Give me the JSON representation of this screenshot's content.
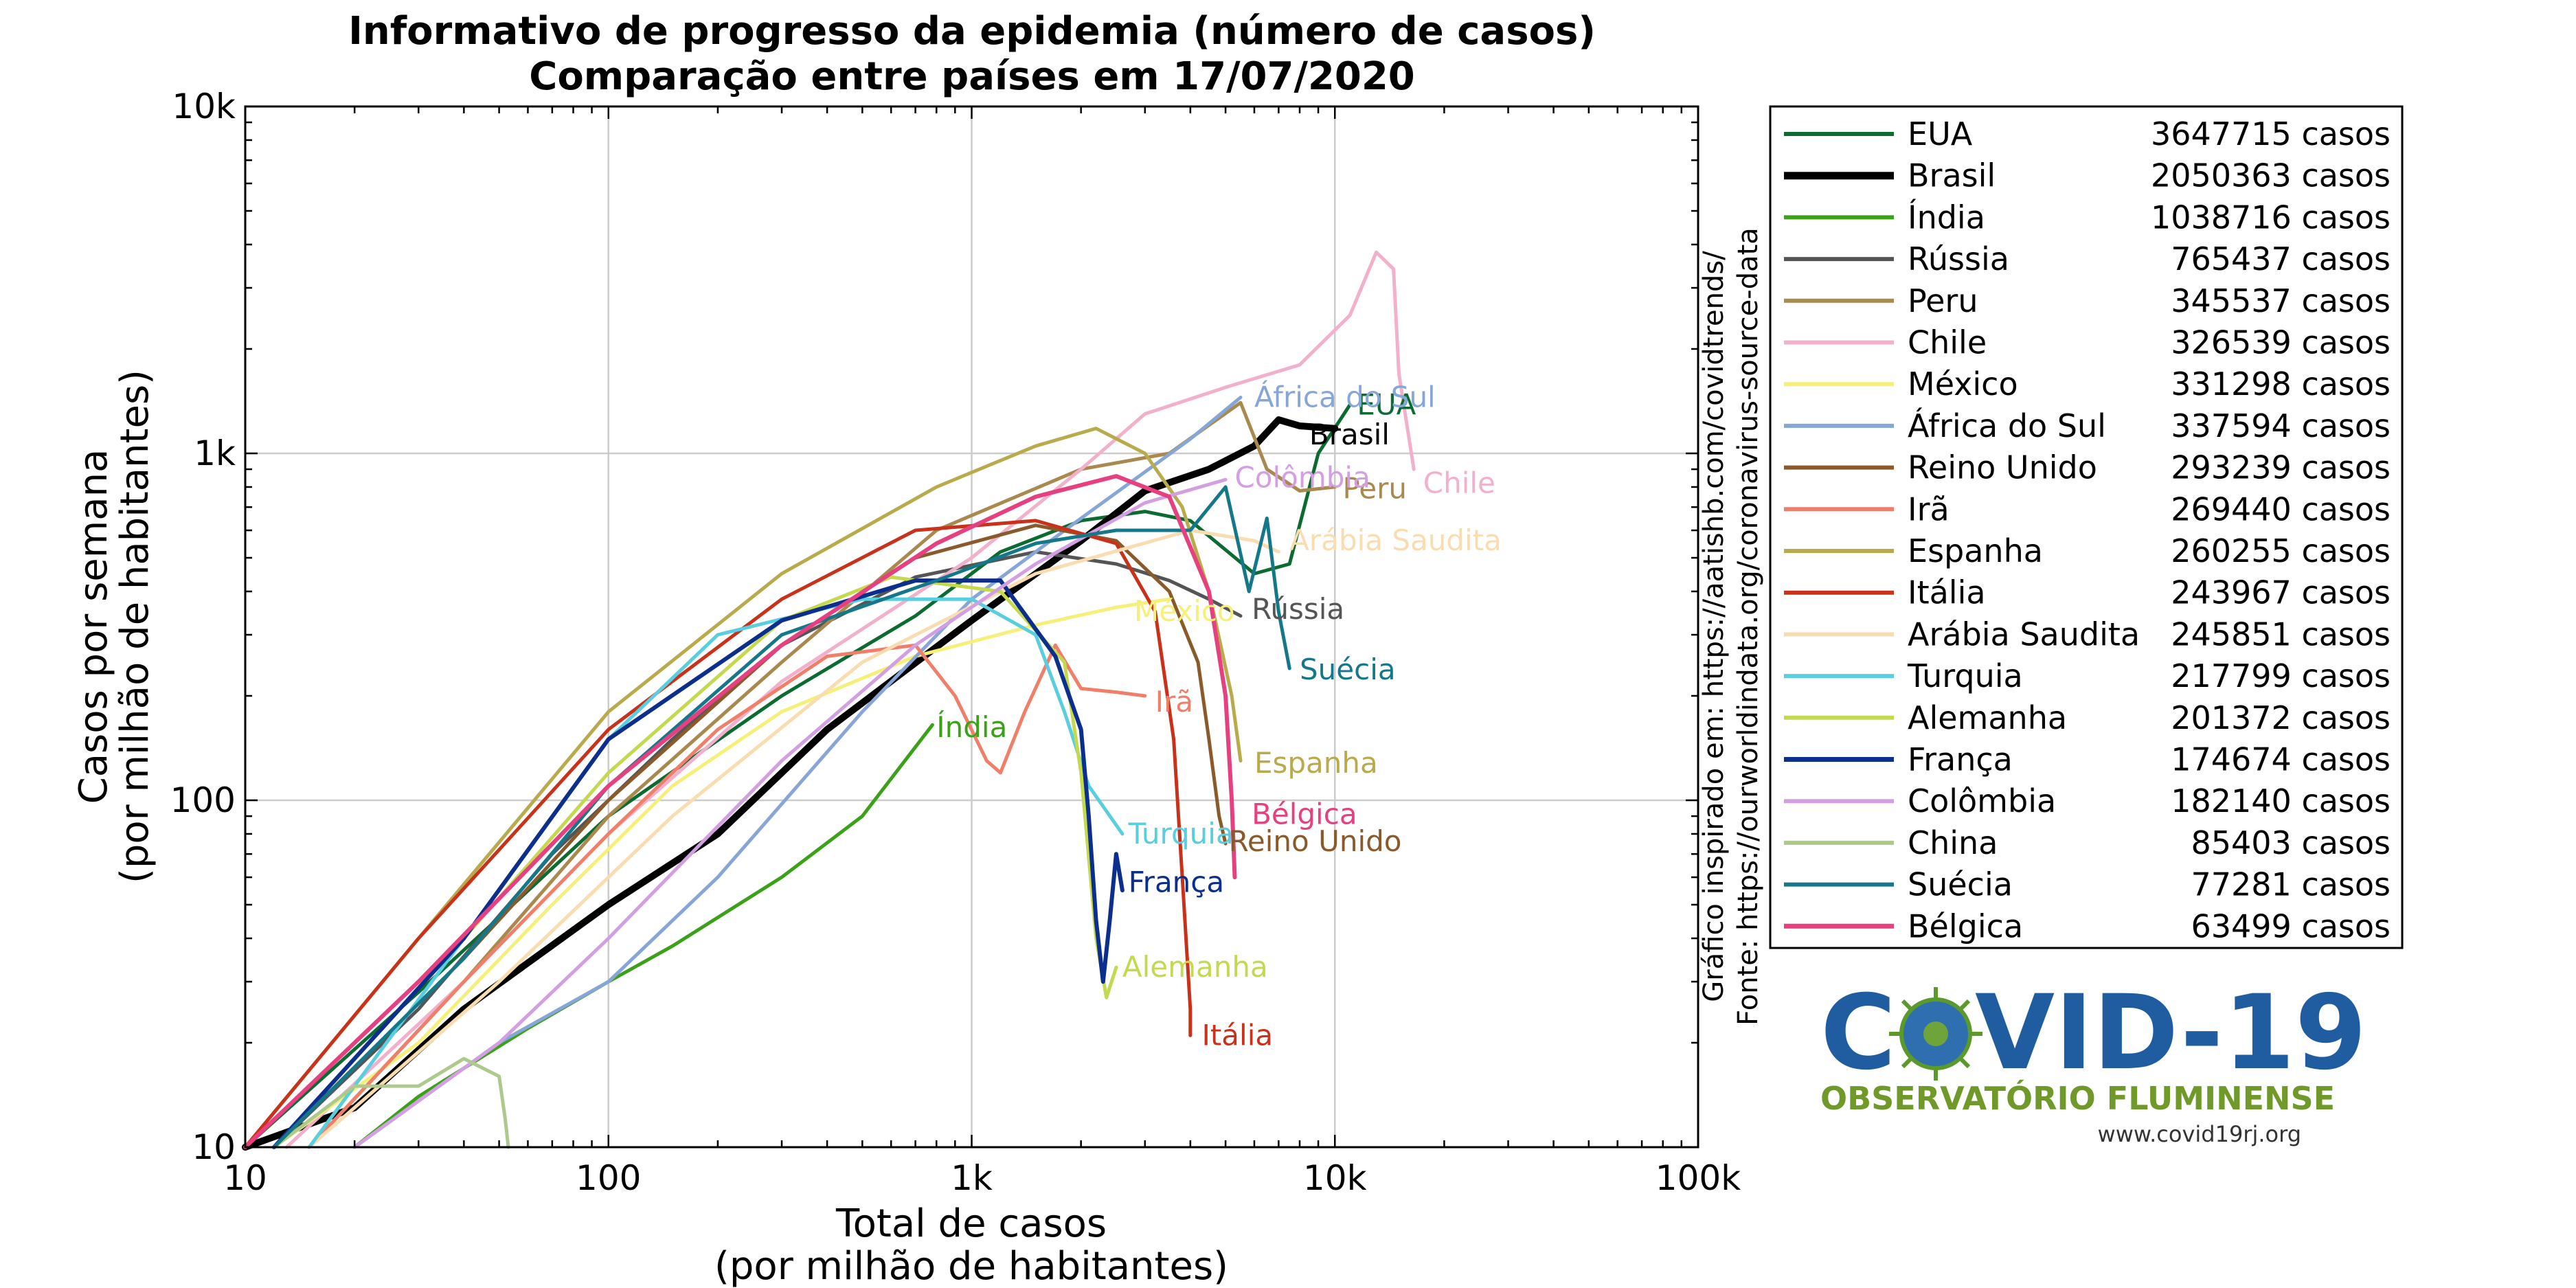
{
  "chart_data": {
    "type": "line",
    "title": "Informativo de progresso da epidemia (número de casos)",
    "subtitle": "Comparação entre países em 17/07/2020",
    "xlabel": "Total de casos",
    "xlabel2": "(por milhão de habitantes)",
    "ylabel": "Casos por semana",
    "ylabel2": "(por milhão de habitantes)",
    "xscale": "log",
    "yscale": "log",
    "xlim": [
      10,
      100000
    ],
    "ylim": [
      10,
      10000
    ],
    "xticks": [
      {
        "v": 10,
        "t": "10"
      },
      {
        "v": 100,
        "t": "100"
      },
      {
        "v": 1000,
        "t": "1k"
      },
      {
        "v": 10000,
        "t": "10k"
      },
      {
        "v": 100000,
        "t": "100k"
      }
    ],
    "yticks": [
      {
        "v": 10,
        "t": "10"
      },
      {
        "v": 100,
        "t": "100"
      },
      {
        "v": 1000,
        "t": "1k"
      },
      {
        "v": 10000,
        "t": "10k"
      }
    ],
    "grid": true,
    "legend_position": "right",
    "series": [
      {
        "name": "EUA",
        "cases": "3647715 casos",
        "color": "#0b6b30",
        "width": 5,
        "points": [
          [
            10,
            10
          ],
          [
            30,
            28
          ],
          [
            100,
            90
          ],
          [
            300,
            200
          ],
          [
            700,
            340
          ],
          [
            1200,
            520
          ],
          [
            2000,
            640
          ],
          [
            3000,
            680
          ],
          [
            4000,
            640
          ],
          [
            6000,
            450
          ],
          [
            7500,
            480
          ],
          [
            9000,
            1000
          ],
          [
            11000,
            1380
          ]
        ],
        "label": {
          "x": 11500,
          "y": 1380,
          "text": "EUA"
        }
      },
      {
        "name": "Brasil",
        "cases": "2050363 casos",
        "color": "#000000",
        "width": 10,
        "points": [
          [
            10,
            10
          ],
          [
            20,
            13
          ],
          [
            40,
            25
          ],
          [
            100,
            50
          ],
          [
            200,
            80
          ],
          [
            400,
            160
          ],
          [
            1000,
            330
          ],
          [
            2000,
            560
          ],
          [
            3000,
            780
          ],
          [
            4500,
            900
          ],
          [
            6000,
            1050
          ],
          [
            7000,
            1250
          ],
          [
            8000,
            1200
          ],
          [
            10000,
            1180
          ]
        ],
        "label": {
          "x": 8500,
          "y": 1130,
          "text": "Brasil"
        }
      },
      {
        "name": "Índia",
        "cases": "1038716 casos",
        "color": "#3aa118",
        "width": 5,
        "points": [
          [
            20,
            10
          ],
          [
            30,
            14
          ],
          [
            60,
            22
          ],
          [
            100,
            30
          ],
          [
            150,
            38
          ],
          [
            300,
            60
          ],
          [
            500,
            90
          ],
          [
            780,
            165
          ]
        ],
        "label": {
          "x": 800,
          "y": 162,
          "text": "Índia"
        }
      },
      {
        "name": "Rússia",
        "cases": "765437 casos",
        "color": "#555555",
        "width": 5,
        "points": [
          [
            12,
            10
          ],
          [
            30,
            25
          ],
          [
            70,
            70
          ],
          [
            150,
            150
          ],
          [
            300,
            280
          ],
          [
            700,
            440
          ],
          [
            1500,
            520
          ],
          [
            2500,
            480
          ],
          [
            3500,
            430
          ],
          [
            4500,
            380
          ],
          [
            5500,
            340
          ]
        ],
        "label": {
          "x": 5900,
          "y": 355,
          "text": "Rússia"
        }
      },
      {
        "name": "Peru",
        "cases": "345537 casos",
        "color": "#a9894e",
        "width": 5,
        "points": [
          [
            15,
            10
          ],
          [
            40,
            30
          ],
          [
            100,
            90
          ],
          [
            300,
            250
          ],
          [
            800,
            600
          ],
          [
            2000,
            900
          ],
          [
            3500,
            1000
          ],
          [
            5500,
            1400
          ],
          [
            6500,
            900
          ],
          [
            8000,
            780
          ],
          [
            10000,
            800
          ]
        ],
        "label": {
          "x": 10500,
          "y": 790,
          "text": "Peru"
        }
      },
      {
        "name": "Chile",
        "cases": "326539 casos",
        "color": "#f2b0cc",
        "width": 5,
        "points": [
          [
            13,
            10
          ],
          [
            40,
            30
          ],
          [
            100,
            80
          ],
          [
            300,
            220
          ],
          [
            1000,
            500
          ],
          [
            2000,
            900
          ],
          [
            3000,
            1300
          ],
          [
            5000,
            1550
          ],
          [
            8000,
            1800
          ],
          [
            11000,
            2500
          ],
          [
            13000,
            3800
          ],
          [
            14500,
            3400
          ],
          [
            15000,
            1700
          ],
          [
            16500,
            900
          ]
        ],
        "label": {
          "x": 17500,
          "y": 820,
          "text": "Chile"
        }
      },
      {
        "name": "México",
        "cases": "331298 casos",
        "color": "#f6f07a",
        "width": 5,
        "points": [
          [
            12,
            10
          ],
          [
            30,
            20
          ],
          [
            70,
            50
          ],
          [
            150,
            110
          ],
          [
            300,
            180
          ],
          [
            700,
            260
          ],
          [
            1500,
            320
          ],
          [
            2500,
            360
          ],
          [
            3500,
            380
          ]
        ],
        "label": {
          "x": 2800,
          "y": 350,
          "text": "México"
        }
      },
      {
        "name": "África do Sul",
        "cases": "337594 casos",
        "color": "#86a6d8",
        "width": 5,
        "points": [
          [
            20,
            10
          ],
          [
            50,
            20
          ],
          [
            100,
            30
          ],
          [
            200,
            60
          ],
          [
            500,
            180
          ],
          [
            1000,
            380
          ],
          [
            2000,
            650
          ],
          [
            4000,
            1100
          ],
          [
            5500,
            1450
          ]
        ],
        "label": {
          "x": 6000,
          "y": 1450,
          "text": "África do Sul"
        }
      },
      {
        "name": "Reino Unido",
        "cases": "293239 casos",
        "color": "#8a5a2b",
        "width": 5,
        "points": [
          [
            12,
            10
          ],
          [
            40,
            35
          ],
          [
            100,
            100
          ],
          [
            300,
            280
          ],
          [
            700,
            500
          ],
          [
            1500,
            620
          ],
          [
            2500,
            560
          ],
          [
            3500,
            400
          ],
          [
            4200,
            250
          ],
          [
            4500,
            150
          ],
          [
            4800,
            90
          ],
          [
            5000,
            75
          ]
        ],
        "label": {
          "x": 5100,
          "y": 76,
          "text": "Reino Unido"
        }
      },
      {
        "name": "Irã",
        "cases": "269440 casos",
        "color": "#f07f6a",
        "width": 5,
        "points": [
          [
            15,
            10
          ],
          [
            40,
            30
          ],
          [
            100,
            80
          ],
          [
            200,
            160
          ],
          [
            400,
            260
          ],
          [
            700,
            280
          ],
          [
            900,
            200
          ],
          [
            1100,
            130
          ],
          [
            1200,
            120
          ],
          [
            1400,
            180
          ],
          [
            1700,
            280
          ],
          [
            2000,
            210
          ],
          [
            2500,
            205
          ],
          [
            3000,
            200
          ]
        ],
        "label": {
          "x": 3200,
          "y": 192,
          "text": "Irã"
        }
      },
      {
        "name": "Espanha",
        "cases": "260255 casos",
        "color": "#b9aa4c",
        "width": 5,
        "points": [
          [
            10,
            10
          ],
          [
            30,
            40
          ],
          [
            100,
            180
          ],
          [
            300,
            450
          ],
          [
            800,
            800
          ],
          [
            1500,
            1050
          ],
          [
            2200,
            1180
          ],
          [
            3000,
            1000
          ],
          [
            3800,
            700
          ],
          [
            4500,
            400
          ],
          [
            5200,
            200
          ],
          [
            5500,
            130
          ]
        ],
        "label": {
          "x": 6000,
          "y": 128,
          "text": "Espanha"
        }
      },
      {
        "name": "Itália",
        "cases": "243967 casos",
        "color": "#c9321a",
        "width": 5,
        "points": [
          [
            10,
            10
          ],
          [
            30,
            40
          ],
          [
            100,
            160
          ],
          [
            300,
            380
          ],
          [
            700,
            600
          ],
          [
            1500,
            640
          ],
          [
            2500,
            550
          ],
          [
            3200,
            350
          ],
          [
            3600,
            150
          ],
          [
            3800,
            60
          ],
          [
            4000,
            25
          ],
          [
            4000,
            21
          ]
        ],
        "label": {
          "x": 4300,
          "y": 21,
          "text": "Itália"
        }
      },
      {
        "name": "Arábia Saudita",
        "cases": "245851 casos",
        "color": "#f9ddb0",
        "width": 5,
        "points": [
          [
            15,
            10
          ],
          [
            50,
            30
          ],
          [
            150,
            90
          ],
          [
            500,
            250
          ],
          [
            1500,
            450
          ],
          [
            4000,
            600
          ],
          [
            6000,
            560
          ],
          [
            7000,
            520
          ]
        ],
        "label": {
          "x": 7500,
          "y": 560,
          "text": "Arábia Saudita"
        }
      },
      {
        "name": "Turquia",
        "cases": "217799 casos",
        "color": "#58cede",
        "width": 5,
        "points": [
          [
            15,
            10
          ],
          [
            40,
            40
          ],
          [
            100,
            150
          ],
          [
            200,
            300
          ],
          [
            500,
            380
          ],
          [
            1000,
            380
          ],
          [
            1500,
            300
          ],
          [
            1800,
            180
          ],
          [
            2100,
            110
          ],
          [
            2600,
            80
          ]
        ],
        "label": {
          "x": 2700,
          "y": 80,
          "text": "Turquia"
        }
      },
      {
        "name": "Alemanha",
        "cases": "201372 casos",
        "color": "#c5d94f",
        "width": 5,
        "points": [
          [
            12,
            10
          ],
          [
            40,
            40
          ],
          [
            100,
            120
          ],
          [
            300,
            330
          ],
          [
            600,
            440
          ],
          [
            1200,
            400
          ],
          [
            1800,
            250
          ],
          [
            2000,
            120
          ],
          [
            2200,
            40
          ],
          [
            2350,
            27
          ],
          [
            2500,
            33
          ]
        ],
        "label": {
          "x": 2600,
          "y": 33,
          "text": "Alemanha"
        }
      },
      {
        "name": "França",
        "cases": "174674 casos",
        "color": "#0c2e8c",
        "width": 6,
        "points": [
          [
            12,
            10
          ],
          [
            40,
            40
          ],
          [
            100,
            150
          ],
          [
            300,
            330
          ],
          [
            700,
            430
          ],
          [
            1200,
            430
          ],
          [
            1700,
            260
          ],
          [
            2000,
            160
          ],
          [
            2100,
            90
          ],
          [
            2200,
            45
          ],
          [
            2300,
            30
          ],
          [
            2400,
            45
          ],
          [
            2500,
            70
          ],
          [
            2600,
            55
          ]
        ],
        "label": {
          "x": 2700,
          "y": 58,
          "text": "França"
        }
      },
      {
        "name": "Colômbia",
        "cases": "182140 casos",
        "color": "#d49ee3",
        "width": 5,
        "points": [
          [
            20,
            10
          ],
          [
            50,
            20
          ],
          [
            100,
            40
          ],
          [
            300,
            130
          ],
          [
            700,
            280
          ],
          [
            1500,
            480
          ],
          [
            3000,
            720
          ],
          [
            5000,
            840
          ]
        ],
        "label": {
          "x": 5300,
          "y": 850,
          "text": "Colômbia"
        }
      },
      {
        "name": "China",
        "cases": "85403 casos",
        "color": "#adc98b",
        "width": 5,
        "points": [
          [
            12,
            10
          ],
          [
            20,
            15
          ],
          [
            30,
            15
          ],
          [
            40,
            18
          ],
          [
            50,
            16
          ],
          [
            52,
            12
          ],
          [
            53,
            10
          ]
        ],
        "label": null
      },
      {
        "name": "Suécia",
        "cases": "77281 casos",
        "color": "#14788a",
        "width": 5,
        "points": [
          [
            12,
            10
          ],
          [
            40,
            35
          ],
          [
            100,
            110
          ],
          [
            300,
            300
          ],
          [
            800,
            430
          ],
          [
            1500,
            550
          ],
          [
            2500,
            600
          ],
          [
            4000,
            600
          ],
          [
            5000,
            800
          ],
          [
            5800,
            400
          ],
          [
            6500,
            650
          ],
          [
            7000,
            350
          ],
          [
            7500,
            240
          ]
        ],
        "label": {
          "x": 8000,
          "y": 238,
          "text": "Suécia"
        }
      },
      {
        "name": "Bélgica",
        "cases": "63499 casos",
        "color": "#e64080",
        "width": 6,
        "points": [
          [
            10,
            10
          ],
          [
            30,
            30
          ],
          [
            100,
            110
          ],
          [
            300,
            280
          ],
          [
            800,
            550
          ],
          [
            1500,
            750
          ],
          [
            2500,
            860
          ],
          [
            3500,
            750
          ],
          [
            4500,
            400
          ],
          [
            5000,
            200
          ],
          [
            5200,
            100
          ],
          [
            5300,
            60
          ]
        ],
        "label": {
          "x": 5900,
          "y": 91,
          "text": "Bélgica"
        }
      }
    ]
  },
  "side_text": {
    "line1": "Gráfico inspirado em: https://aatishb.com/covidtrends/",
    "line2": "Fonte: https://ourworldindata.org/coronavirus-source-data"
  },
  "logo": {
    "big_left": "C",
    "big_right": "VID-19",
    "subtitle": "OBSERVATÓRIO FLUMINENSE",
    "url": "www.covid19rj.org"
  },
  "colors": {
    "grid": "#cccccc",
    "axis": "#000000",
    "logo_blue": "#1f5ca0",
    "logo_green": "#6f9a2a"
  }
}
